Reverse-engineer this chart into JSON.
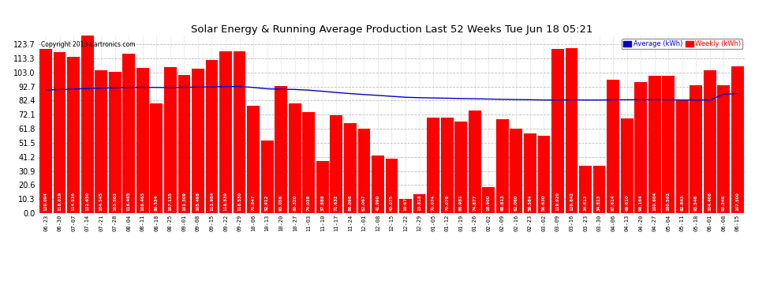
{
  "title": "Solar Energy & Running Average Production Last 52 Weeks Tue Jun 18 05:21",
  "copyright": "Copyright 2013 Cartronics.com",
  "legend_avg": "Average (kWh)",
  "legend_weekly": "Weekly (kWh)",
  "bar_color": "#ff0000",
  "avg_line_color": "#0000cc",
  "background_color": "#ffffff",
  "plot_bg_color": "#ffffff",
  "grid_color": "#aaaaaa",
  "ylim": [
    0.0,
    130.0
  ],
  "yticks": [
    0.0,
    10.3,
    20.6,
    30.9,
    41.2,
    51.5,
    61.8,
    72.1,
    82.4,
    92.7,
    103.0,
    113.3,
    123.7
  ],
  "dates": [
    "06-23",
    "06-30",
    "07-07",
    "07-14",
    "07-21",
    "07-28",
    "08-04",
    "08-11",
    "08-18",
    "08-25",
    "09-01",
    "09-08",
    "09-15",
    "09-22",
    "09-29",
    "10-06",
    "10-13",
    "10-20",
    "10-27",
    "11-03",
    "11-10",
    "11-17",
    "11-24",
    "12-01",
    "12-08",
    "12-15",
    "12-22",
    "12-29",
    "01-05",
    "01-12",
    "01-19",
    "01-26",
    "02-02",
    "02-09",
    "02-16",
    "02-23",
    "03-02",
    "03-09",
    "03-16",
    "03-23",
    "03-30",
    "04-06",
    "04-13",
    "04-20",
    "04-27",
    "05-04",
    "05-11",
    "05-18",
    "06-01",
    "06-08",
    "06-15"
  ],
  "weekly_values": [
    120.094,
    118.019,
    114.536,
    131.65,
    104.545,
    103.563,
    116.465,
    106.465,
    80.534,
    107.135,
    101.309,
    105.498,
    111.984,
    118.539,
    118.53,
    78.847,
    52.912,
    93.056,
    80.32,
    74.038,
    37.888,
    71.632,
    66.096,
    62.067,
    41.99,
    40.075,
    10.671,
    13.818,
    70.074,
    70.078,
    66.981,
    74.877,
    18.9,
    68.813,
    62.06,
    58.584,
    56.63,
    119.92,
    120.642,
    34.813,
    34.813,
    97.614,
    69.61,
    96.164,
    100.664,
    100.562,
    82.843,
    93.546,
    104.406,
    93.546,
    107.5
  ],
  "avg_values": [
    90.0,
    90.5,
    90.8,
    91.2,
    91.5,
    91.7,
    92.0,
    92.1,
    92.0,
    91.9,
    92.1,
    92.2,
    92.4,
    92.6,
    92.7,
    92.0,
    91.0,
    90.7,
    90.5,
    90.0,
    89.2,
    88.3,
    87.5,
    86.8,
    86.2,
    85.5,
    84.8,
    84.5,
    84.3,
    84.1,
    83.9,
    83.7,
    83.5,
    83.3,
    83.1,
    83.0,
    82.8,
    82.8,
    82.9,
    82.8,
    82.8,
    82.9,
    83.0,
    83.0,
    83.0,
    82.9,
    82.8,
    82.8,
    82.8,
    87.0,
    87.5
  ]
}
